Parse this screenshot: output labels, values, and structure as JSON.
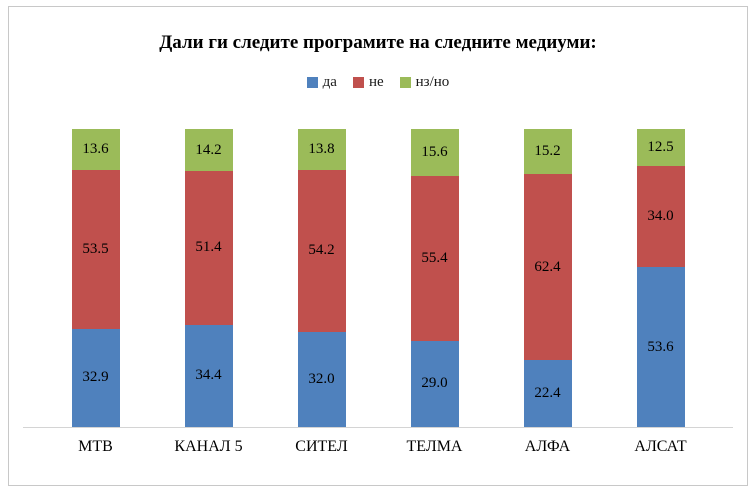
{
  "chart_data": {
    "type": "bar",
    "variant": "stacked-100-percent",
    "title": "Дали ги следите програмите на следните медиуми:",
    "categories": [
      "МТВ",
      "КАНАЛ 5",
      "СИТЕЛ",
      "ТЕЛМА",
      "АЛФА",
      "АЛСАТ"
    ],
    "series": [
      {
        "name": "да",
        "color": "#4F81BD",
        "values": [
          32.9,
          34.4,
          32.0,
          29.0,
          22.4,
          53.6
        ]
      },
      {
        "name": "не",
        "color": "#C0504D",
        "values": [
          53.5,
          51.4,
          54.2,
          55.4,
          62.4,
          34.0
        ]
      },
      {
        "name": "нз/но",
        "color": "#9BBB59",
        "values": [
          13.6,
          14.2,
          13.8,
          15.6,
          15.2,
          12.5
        ]
      }
    ],
    "legend_position": "top",
    "value_labels": "inside-center-one-decimal",
    "ylim": [
      0,
      100
    ],
    "grid": "off",
    "axis_line_color": "#d4d4d4",
    "frame_border_color": "#c8c8c8"
  }
}
